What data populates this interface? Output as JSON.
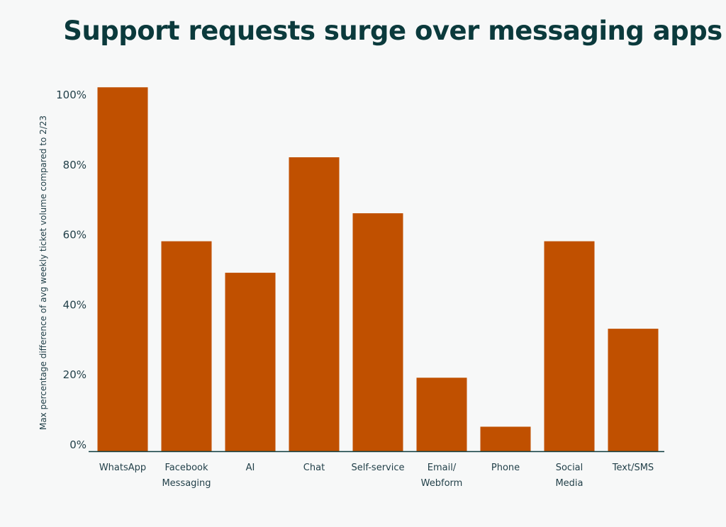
{
  "chart_data": {
    "type": "bar",
    "title": "Support requests surge over messaging apps",
    "ylabel": "Max percentage difference of avg weekly ticket volume compared to 2/23",
    "xlabel": "",
    "categories": [
      [
        "WhatsApp"
      ],
      [
        "Facebook",
        "Messaging"
      ],
      [
        "AI"
      ],
      [
        "Chat"
      ],
      [
        "Self-service"
      ],
      [
        "Email/",
        "Webform"
      ],
      [
        "Phone"
      ],
      [
        "Social",
        "Media"
      ],
      [
        "Text/SMS"
      ]
    ],
    "values": [
      104,
      60,
      51,
      84,
      68,
      21,
      7,
      60,
      35
    ],
    "ylim": [
      0,
      104
    ],
    "yticks": [
      0,
      20,
      40,
      60,
      80,
      100
    ],
    "ytick_labels": [
      "0%",
      "20%",
      "40%",
      "60%",
      "80%",
      "100%"
    ],
    "grid": false,
    "bar_color": "#c05000",
    "axis_color": "#0b3a3c"
  }
}
